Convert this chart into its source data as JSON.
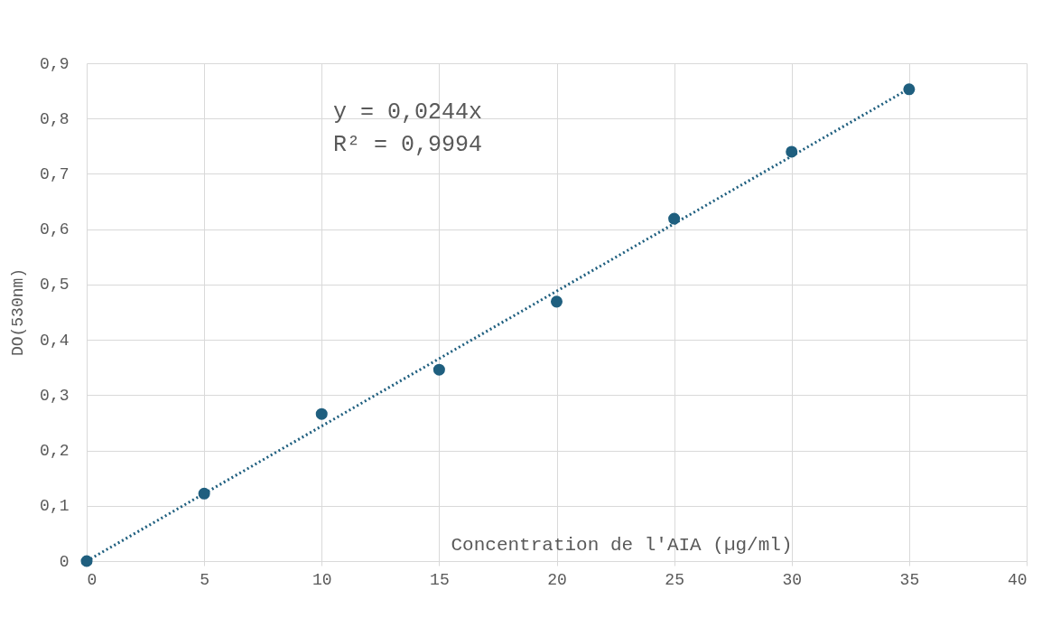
{
  "chart_data": {
    "type": "scatter",
    "xlabel": "Concentration de l'AIA (µg/ml)",
    "ylabel": "DO(530nm)",
    "x": [
      0,
      5,
      10,
      15,
      20,
      25,
      30,
      35
    ],
    "series": [
      {
        "color": "#1f5f7f",
        "marker": "circle",
        "values": [
          0,
          0.122,
          0.266,
          0.346,
          0.469,
          0.619,
          0.74,
          0.853
        ]
      },
      {
        "type": "line",
        "color": "#1f5f7f",
        "line_style": "dotted",
        "x": [
          0,
          35
        ],
        "values": [
          0,
          0.854
        ]
      }
    ],
    "xlim": [
      0,
      40
    ],
    "xticks": [
      0,
      5,
      10,
      15,
      20,
      25,
      30,
      35,
      40
    ],
    "ylim": [
      0,
      0.9
    ],
    "yticks": [
      0,
      {
        "value": 0.1,
        "label": "0,1"
      },
      {
        "value": 0.2,
        "label": "0,2"
      },
      {
        "value": 0.3,
        "label": "0,3"
      },
      {
        "value": 0.4,
        "label": "0,4"
      },
      {
        "value": 0.5,
        "label": "0,5"
      },
      {
        "value": 0.6,
        "label": "0,6"
      },
      {
        "value": 0.7,
        "label": "0,7"
      },
      {
        "value": 0.8,
        "label": "0,8"
      },
      {
        "value": 0.9,
        "label": "0,9"
      }
    ],
    "grid": true,
    "annotations": [
      "y = 0,0244x",
      "R² = 0,9994"
    ]
  }
}
